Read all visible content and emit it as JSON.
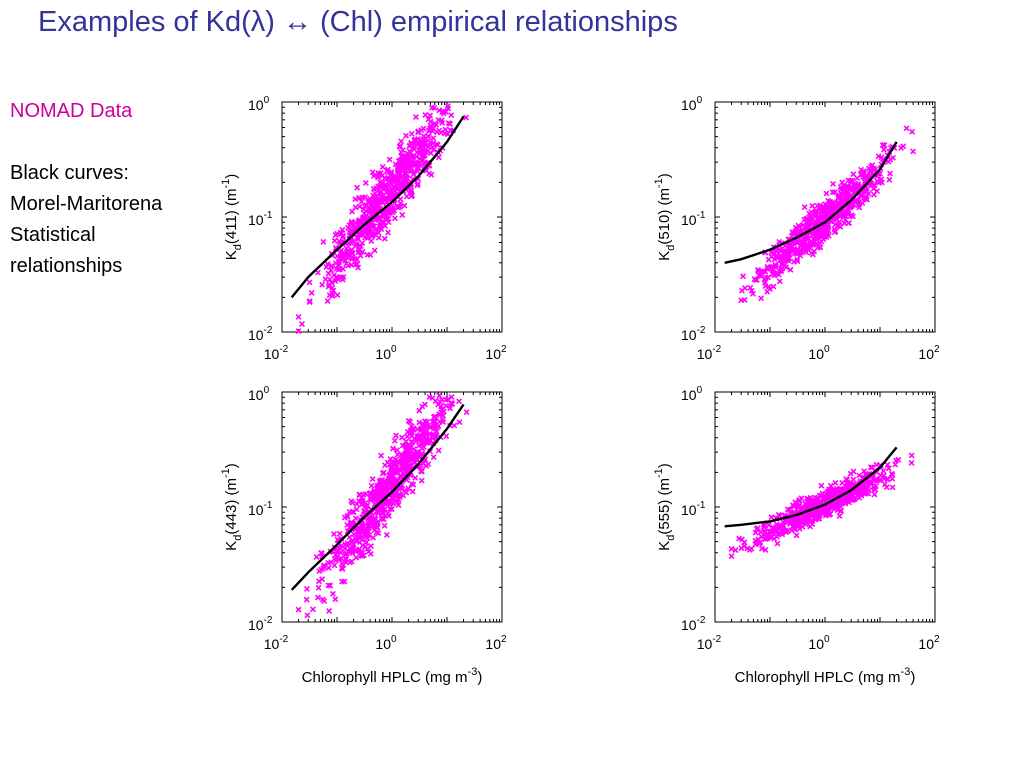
{
  "title": "Examples of Kd(λ) ↔ (Chl) empirical relationships",
  "sidebar": {
    "source_label": "NOMAD Data",
    "curves_label": "Black curves:",
    "curves_lines": [
      "Morel-Maritorena",
      "Statistical",
      "relationships"
    ]
  },
  "colors": {
    "points": "#ff00ff",
    "curve": "#000000",
    "title": "#333399",
    "source": "#cc0099"
  },
  "chart_data": [
    {
      "type": "scatter",
      "ylabel": "Kd(411) (m-1)",
      "ylabel_parts": {
        "base": "K",
        "sub": "d",
        "rest": "(411) (m",
        "sup": "-1",
        "end": ")"
      },
      "xlabel": "",
      "xscale": "log",
      "yscale": "log",
      "xlim": [
        0.01,
        100
      ],
      "ylim": [
        0.01,
        1
      ],
      "xticks": [
        {
          "base": "10",
          "exp": "-2"
        },
        {
          "base": "10",
          "exp": "0"
        },
        {
          "base": "10",
          "exp": "2"
        }
      ],
      "yticks": [
        {
          "base": "10",
          "exp": "0"
        },
        {
          "base": "10",
          "exp": "-1"
        },
        {
          "base": "10",
          "exp": "-2"
        }
      ],
      "series": [
        {
          "kind": "points",
          "chl_range": [
            0.02,
            35
          ],
          "kd_at_chl1": 0.175,
          "slope": 0.63,
          "scatter_log10": 0.14,
          "count": 650
        },
        {
          "kind": "curve",
          "x": [
            0.015,
            0.03,
            0.1,
            0.3,
            1,
            3,
            10,
            20
          ],
          "y": [
            0.02,
            0.03,
            0.052,
            0.084,
            0.135,
            0.225,
            0.45,
            0.75
          ]
        }
      ]
    },
    {
      "type": "scatter",
      "ylabel": "Kd(510) (m-1)",
      "ylabel_parts": {
        "base": "K",
        "sub": "d",
        "rest": "(510) (m",
        "sup": "-1",
        "end": ")"
      },
      "xlabel": "",
      "xscale": "log",
      "yscale": "log",
      "xlim": [
        0.01,
        100
      ],
      "ylim": [
        0.01,
        1
      ],
      "xticks": [
        {
          "base": "10",
          "exp": "-2"
        },
        {
          "base": "10",
          "exp": "0"
        },
        {
          "base": "10",
          "exp": "2"
        }
      ],
      "yticks": [
        {
          "base": "10",
          "exp": "0"
        },
        {
          "base": "10",
          "exp": "-1"
        },
        {
          "base": "10",
          "exp": "-2"
        }
      ],
      "series": [
        {
          "kind": "points",
          "chl_range": [
            0.02,
            40
          ],
          "kd_at_chl1": 0.095,
          "slope": 0.42,
          "scatter_log10": 0.09,
          "count": 600
        },
        {
          "kind": "curve",
          "x": [
            0.015,
            0.03,
            0.1,
            0.3,
            1,
            3,
            10,
            20
          ],
          "y": [
            0.04,
            0.043,
            0.052,
            0.066,
            0.09,
            0.14,
            0.26,
            0.45
          ]
        }
      ]
    },
    {
      "type": "scatter",
      "ylabel": "Kd(443) (m-1)",
      "ylabel_parts": {
        "base": "K",
        "sub": "d",
        "rest": "(443) (m",
        "sup": "-1",
        "end": ")"
      },
      "xlabel": "Chlorophyll HPLC (mg m-3)",
      "xlabel_parts": {
        "base": "Chlorophyll HPLC (mg m",
        "sup": "-3",
        "end": ")"
      },
      "xscale": "log",
      "yscale": "log",
      "xlim": [
        0.01,
        100
      ],
      "ylim": [
        0.01,
        1
      ],
      "xticks": [
        {
          "base": "10",
          "exp": "-2"
        },
        {
          "base": "10",
          "exp": "0"
        },
        {
          "base": "10",
          "exp": "2"
        }
      ],
      "yticks": [
        {
          "base": "10",
          "exp": "0"
        },
        {
          "base": "10",
          "exp": "-1"
        },
        {
          "base": "10",
          "exp": "-2"
        }
      ],
      "series": [
        {
          "kind": "points",
          "chl_range": [
            0.02,
            35
          ],
          "kd_at_chl1": 0.16,
          "slope": 0.66,
          "scatter_log10": 0.14,
          "count": 650
        },
        {
          "kind": "curve",
          "x": [
            0.015,
            0.03,
            0.1,
            0.3,
            1,
            3,
            10,
            20
          ],
          "y": [
            0.019,
            0.027,
            0.047,
            0.08,
            0.135,
            0.235,
            0.48,
            0.78
          ]
        }
      ]
    },
    {
      "type": "scatter",
      "ylabel": "Kd(555) (m-1)",
      "ylabel_parts": {
        "base": "K",
        "sub": "d",
        "rest": "(555) (m",
        "sup": "-1",
        "end": ")"
      },
      "xlabel": "Chlorophyll HPLC (mg m-3)",
      "xlabel_parts": {
        "base": "Chlorophyll HPLC (mg m",
        "sup": "-3",
        "end": ")"
      },
      "xscale": "log",
      "yscale": "log",
      "xlim": [
        0.01,
        100
      ],
      "ylim": [
        0.01,
        1
      ],
      "xticks": [
        {
          "base": "10",
          "exp": "-2"
        },
        {
          "base": "10",
          "exp": "0"
        },
        {
          "base": "10",
          "exp": "2"
        }
      ],
      "yticks": [
        {
          "base": "10",
          "exp": "0"
        },
        {
          "base": "10",
          "exp": "-1"
        },
        {
          "base": "10",
          "exp": "-2"
        }
      ],
      "series": [
        {
          "kind": "points",
          "chl_range": [
            0.02,
            40
          ],
          "kd_at_chl1": 0.105,
          "slope": 0.24,
          "scatter_log10": 0.06,
          "count": 600
        },
        {
          "kind": "curve",
          "x": [
            0.015,
            0.03,
            0.1,
            0.3,
            1,
            3,
            10,
            20
          ],
          "y": [
            0.068,
            0.07,
            0.075,
            0.085,
            0.105,
            0.14,
            0.22,
            0.33
          ]
        }
      ]
    }
  ]
}
